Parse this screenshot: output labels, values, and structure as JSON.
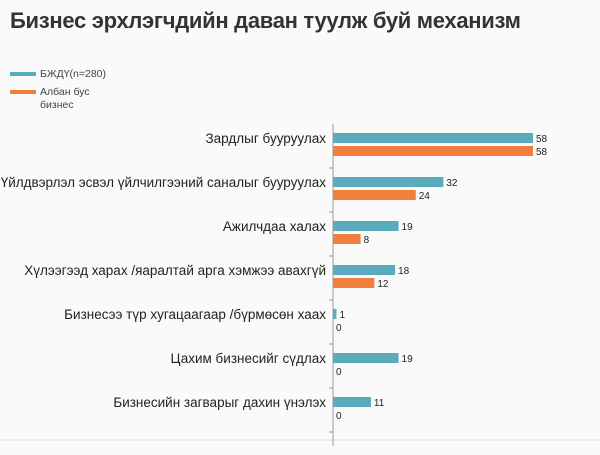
{
  "title": "Бизнес эрхлэгчдийн даван туулж буй механизм",
  "legend": [
    {
      "label": "БЖДҮ(n=280)",
      "color": "#5aabbd"
    },
    {
      "label": "Албан бус бизнес",
      "color": "#f07e3c"
    }
  ],
  "chart_data": {
    "type": "bar",
    "orientation": "horizontal",
    "title": "Бизнес эрхлэгчдийн даван туулж буй механизм",
    "categories": [
      "Зардлыг бууруулах",
      "Үйлдвэрлэл эсвэл үйлчилгээний саналыг бууруулах",
      "Ажилчдаа халах",
      "Хүлээгээд харах /яаралтай арга хэмжээ авахгүй",
      "Бизнесээ түр хугацаагаар /бүрмөсөн хаах",
      "Цахим бизнесийг сүдлах",
      "Бизнесийн загварыг дахин үнэлэх"
    ],
    "series": [
      {
        "name": "БЖДҮ(n=280)",
        "color": "#5aabbd",
        "values": [
          58,
          32,
          19,
          18,
          1,
          19,
          11
        ]
      },
      {
        "name": "Албан бус бизнес",
        "color": "#f07e3c",
        "values": [
          58,
          24,
          8,
          12,
          0,
          0,
          0
        ]
      }
    ],
    "xlim": [
      0,
      60
    ],
    "grid": false,
    "legend_position": "top-left"
  }
}
